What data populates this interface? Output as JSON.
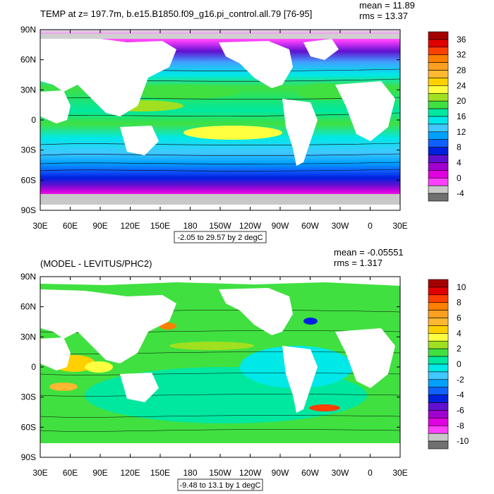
{
  "top_panel": {
    "title": "TEMP at z= 197.7m, b.e15.B1850.f09_g16.pi_control.all.79 [76-95]",
    "mean": "mean = 11.89",
    "rms": "rms = 13.37",
    "range_label": "-2.05 to 29.57 by 2 degC",
    "lat_labels": [
      "90N",
      "60N",
      "30N",
      "0",
      "30S",
      "60S",
      "90S"
    ],
    "lon_labels": [
      "30E",
      "60E",
      "90E",
      "120E",
      "150E",
      "180",
      "150W",
      "120W",
      "90W",
      "60W",
      "30W",
      "0",
      "30E"
    ],
    "colorbar": {
      "labels": [
        "36",
        "32",
        "28",
        "24",
        "20",
        "16",
        "12",
        "8",
        "4",
        "0",
        "-4"
      ],
      "colors": [
        "#a50000",
        "#e00000",
        "#ff4000",
        "#ff7f00",
        "#ff9f20",
        "#ffb830",
        "#ffd000",
        "#ffff40",
        "#a0e020",
        "#40e040",
        "#00e8a0",
        "#00e8e8",
        "#40c8ff",
        "#00a0ff",
        "#1060ff",
        "#0020e0",
        "#6010d0",
        "#a000d0",
        "#e000e0",
        "#ff40ff",
        "#c8c8c8",
        "#707070"
      ]
    }
  },
  "bottom_panel": {
    "title": "(MODEL - LEVITUS/PHC2)",
    "mean": "mean = -0.05551",
    "rms": "rms = 1.317",
    "range_label": "-9.48 to 13.1 by 1 degC",
    "lat_labels": [
      "90N",
      "60N",
      "30N",
      "0",
      "30S",
      "60S",
      "90S"
    ],
    "lon_labels": [
      "30E",
      "60E",
      "90E",
      "120E",
      "150E",
      "180",
      "150W",
      "120W",
      "90W",
      "60W",
      "30W",
      "0",
      "30E"
    ],
    "colorbar": {
      "labels": [
        "10",
        "8",
        "6",
        "4",
        "2",
        "0",
        "-2",
        "-4",
        "-6",
        "-8",
        "-10"
      ],
      "colors": [
        "#a50000",
        "#e00000",
        "#ff4000",
        "#ff7f00",
        "#ff9f20",
        "#ffb830",
        "#ffd000",
        "#ffff40",
        "#a0e020",
        "#40e040",
        "#00e8a0",
        "#00e8e8",
        "#40c8ff",
        "#00a0ff",
        "#1060ff",
        "#0020e0",
        "#6010d0",
        "#a000d0",
        "#e000e0",
        "#ff40ff",
        "#c8c8c8",
        "#707070"
      ]
    }
  }
}
